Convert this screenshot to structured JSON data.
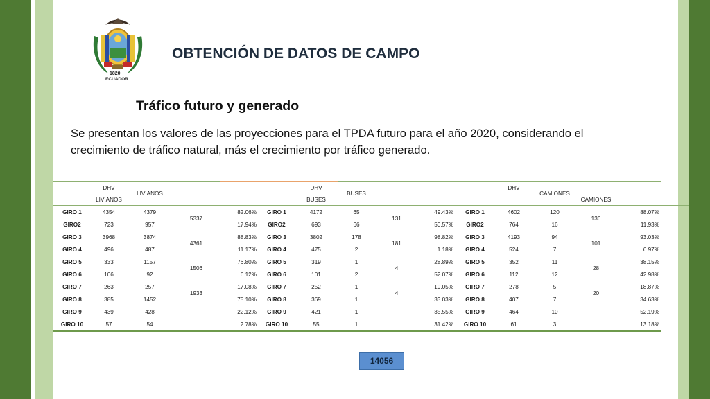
{
  "header": {
    "title": "OBTENCIÓN DE DATOS DE CAMPO",
    "seal_text": "ECUADOR",
    "seal_year": "1820"
  },
  "section": {
    "subtitle": "Tráfico futuro y generado",
    "paragraph": "Se presentan los valores de las proyecciones para el TPDA futuro para el año 2020, considerando el crecimiento de tráfico natural, más el crecimiento por tráfico generado."
  },
  "table": {
    "headers": {
      "dhv": "DHV",
      "livianos": "LIVIANOS",
      "buses": "BUSES",
      "camiones": "CAMIONES"
    },
    "rows": [
      {
        "giro": "GIRO 1",
        "l_dhv": "4354",
        "l_val": "4379",
        "l_pct": "82.06%",
        "b_giro": "GIRO 1",
        "b_dhv": "4172",
        "b_val": "65",
        "b_pct": "49.43%",
        "c_giro": "GIRO 1",
        "c_dhv": "4602",
        "c_val": "120",
        "c_pct": "88.07%"
      },
      {
        "giro": "GIRO2",
        "l_dhv": "723",
        "l_val": "957",
        "l_pct": "17.94%",
        "b_giro": "GIRO2",
        "b_dhv": "693",
        "b_val": "66",
        "b_pct": "50.57%",
        "c_giro": "GIRO2",
        "c_dhv": "764",
        "c_val": "16",
        "c_pct": "11.93%"
      },
      {
        "giro": "GIRO 3",
        "l_dhv": "3968",
        "l_val": "3874",
        "l_pct": "88.83%",
        "b_giro": "GIRO 3",
        "b_dhv": "3802",
        "b_val": "178",
        "b_pct": "98.82%",
        "c_giro": "GIRO 3",
        "c_dhv": "4193",
        "c_val": "94",
        "c_pct": "93.03%"
      },
      {
        "giro": "GIRO 4",
        "l_dhv": "496",
        "l_val": "487",
        "l_pct": "11.17%",
        "b_giro": "GIRO 4",
        "b_dhv": "475",
        "b_val": "2",
        "b_pct": "1.18%",
        "c_giro": "GIRO 4",
        "c_dhv": "524",
        "c_val": "7",
        "c_pct": "6.97%"
      },
      {
        "giro": "GIRO 5",
        "l_dhv": "333",
        "l_val": "1157",
        "l_pct": "76.80%",
        "b_giro": "GIRO 5",
        "b_dhv": "319",
        "b_val": "1",
        "b_pct": "28.89%",
        "c_giro": "GIRO 5",
        "c_dhv": "352",
        "c_val": "11",
        "c_pct": "38.15%"
      },
      {
        "giro": "GIRO 6",
        "l_dhv": "106",
        "l_val": "92",
        "l_pct": "6.12%",
        "b_giro": "GIRO 6",
        "b_dhv": "101",
        "b_val": "2",
        "b_pct": "52.07%",
        "c_giro": "GIRO 6",
        "c_dhv": "112",
        "c_val": "12",
        "c_pct": "42.98%"
      },
      {
        "giro": "GIRO 7",
        "l_dhv": "263",
        "l_val": "257",
        "l_pct": "17.08%",
        "b_giro": "GIRO 7",
        "b_dhv": "252",
        "b_val": "1",
        "b_pct": "19.05%",
        "c_giro": "GIRO 7",
        "c_dhv": "278",
        "c_val": "5",
        "c_pct": "18.87%"
      },
      {
        "giro": "GIRO 8",
        "l_dhv": "385",
        "l_val": "1452",
        "l_pct": "75.10%",
        "b_giro": "GIRO 8",
        "b_dhv": "369",
        "b_val": "1",
        "b_pct": "33.03%",
        "c_giro": "GIRO 8",
        "c_dhv": "407",
        "c_val": "7",
        "c_pct": "34.63%"
      },
      {
        "giro": "GIRO 9",
        "l_dhv": "439",
        "l_val": "428",
        "l_pct": "22.12%",
        "b_giro": "GIRO 9",
        "b_dhv": "421",
        "b_val": "1",
        "b_pct": "35.55%",
        "c_giro": "GIRO 9",
        "c_dhv": "464",
        "c_val": "10",
        "c_pct": "52.19%"
      },
      {
        "giro": "GIRO 10",
        "l_dhv": "57",
        "l_val": "54",
        "l_pct": "2.78%",
        "b_giro": "GIRO 10",
        "b_dhv": "55",
        "b_val": "1",
        "b_pct": "31.42%",
        "c_giro": "GIRO 10",
        "c_dhv": "61",
        "c_val": "3",
        "c_pct": "13.18%"
      }
    ],
    "pair_totals": {
      "livianos": [
        "5337",
        "4361",
        "1506",
        "1933"
      ],
      "buses": [
        "131",
        "181",
        "4",
        "4"
      ],
      "camiones": [
        "136",
        "101",
        "28",
        "20"
      ]
    }
  },
  "total": "14056"
}
